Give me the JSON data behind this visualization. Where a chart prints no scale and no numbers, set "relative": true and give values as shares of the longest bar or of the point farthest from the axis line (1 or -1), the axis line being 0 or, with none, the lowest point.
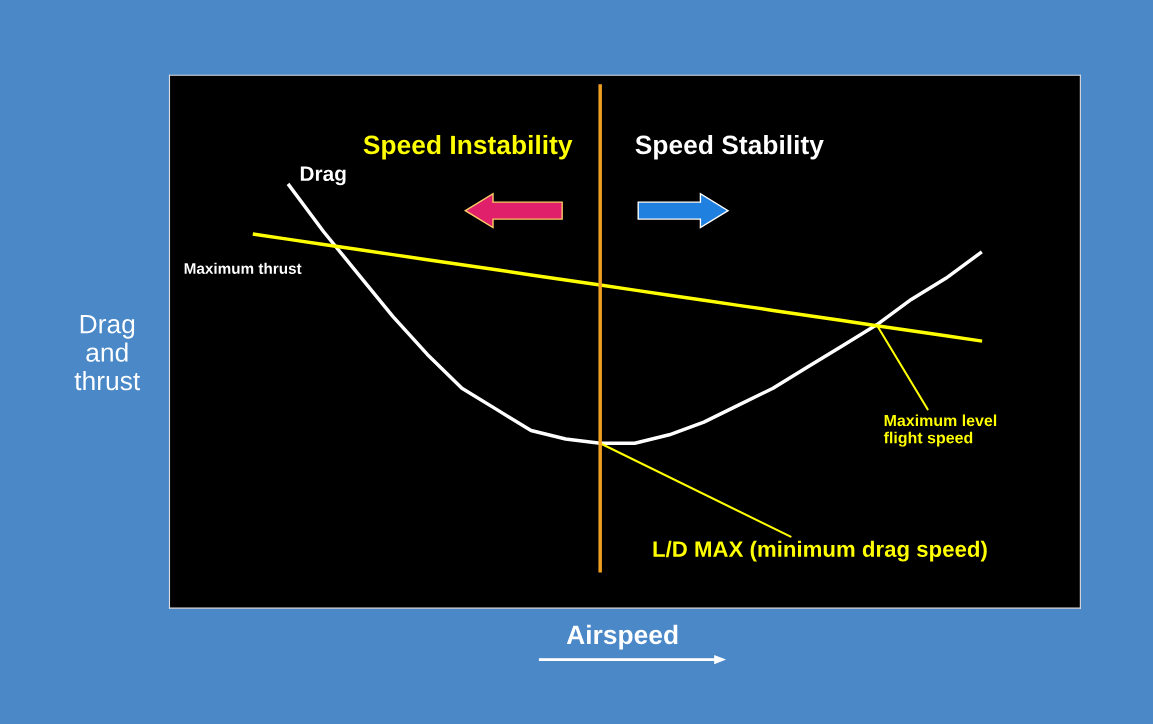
{
  "chart_data": {
    "type": "line",
    "relative": true,
    "xlabel": "Airspeed",
    "ylabel": "Drag and thrust",
    "legend": false,
    "categories": [
      null,
      null,
      null,
      null,
      null,
      null,
      null,
      null,
      null,
      null,
      null,
      null,
      null,
      null,
      null,
      null,
      null,
      null,
      null,
      null,
      null,
      null
    ],
    "series": [
      {
        "name": "Drag",
        "color": "#ffffff",
        "values": [
          null,
          1.0,
          0.89,
          0.79,
          0.69,
          0.6,
          0.52,
          0.47,
          0.42,
          0.4,
          0.39,
          0.39,
          0.41,
          0.44,
          0.48,
          0.52,
          0.57,
          0.62,
          0.67,
          0.73,
          0.78,
          0.84
        ]
      },
      {
        "name": "Maximum thrust",
        "color": "#ffff00",
        "values": [
          0.884,
          0.872,
          0.86,
          0.848,
          0.836,
          0.824,
          0.812,
          0.8,
          0.788,
          0.776,
          0.764,
          0.752,
          0.74,
          0.728,
          0.716,
          0.704,
          0.692,
          0.68,
          0.668,
          0.656,
          0.644,
          0.632
        ]
      }
    ],
    "annotations": [
      "Speed Instability",
      "Speed Stability",
      "Maximum level flight speed",
      "L/D MAX (minimum drag speed)"
    ]
  }
}
